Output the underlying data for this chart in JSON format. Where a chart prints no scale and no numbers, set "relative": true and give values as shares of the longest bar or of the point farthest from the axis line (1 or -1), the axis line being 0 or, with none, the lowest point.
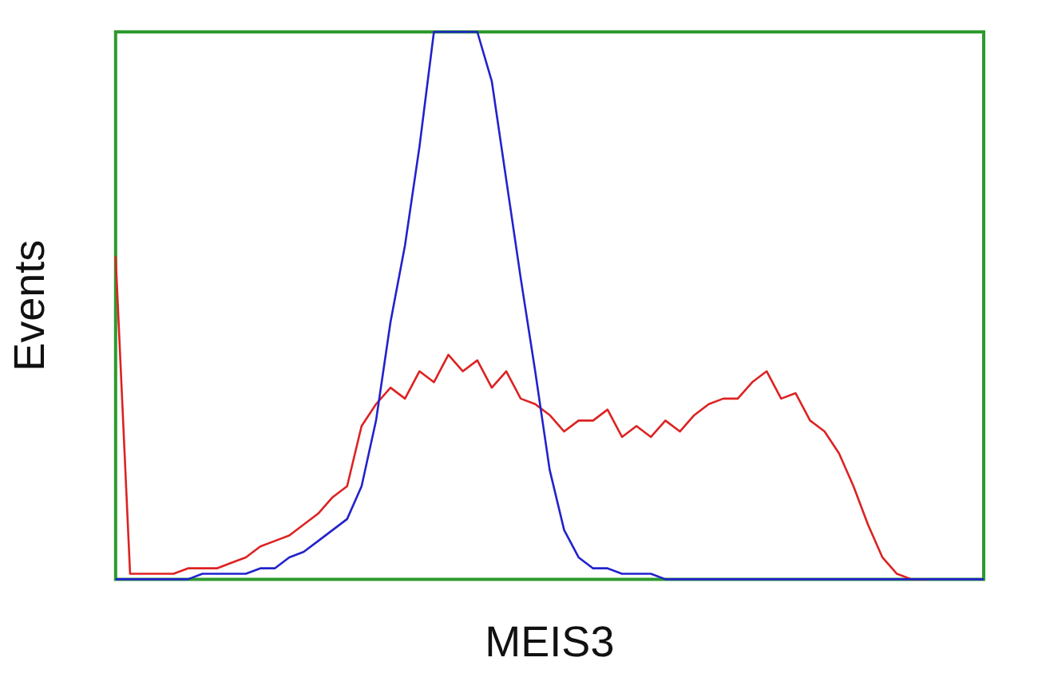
{
  "chart_data": {
    "type": "line",
    "xlabel": "MEIS3",
    "ylabel": "Events",
    "relative": true,
    "legend": false,
    "marker": "none",
    "categories": [
      null,
      null,
      null,
      null,
      null,
      null,
      null,
      null,
      null,
      null,
      null,
      null,
      null,
      null,
      null,
      null,
      null,
      null,
      null,
      null,
      null,
      null,
      null,
      null,
      null,
      null,
      null,
      null,
      null,
      null,
      null,
      null,
      null,
      null,
      null,
      null,
      null,
      null,
      null,
      null,
      null,
      null,
      null,
      null,
      null,
      null,
      null,
      null,
      null,
      null,
      null,
      null,
      null,
      null,
      null,
      null,
      null,
      null,
      null,
      null,
      null
    ],
    "series": [
      {
        "color": "#2222cc",
        "values": [
          0,
          0,
          0,
          0,
          0,
          0,
          0.01,
          0.01,
          0.01,
          0.01,
          0.02,
          0.02,
          0.04,
          0.05,
          0.07,
          0.09,
          0.11,
          0.17,
          0.29,
          0.47,
          0.61,
          0.79,
          1,
          1,
          1,
          1,
          0.91,
          0.73,
          0.55,
          0.38,
          0.2,
          0.09,
          0.04,
          0.02,
          0.02,
          0.01,
          0.01,
          0.01,
          0,
          0,
          0,
          0,
          0,
          0,
          0,
          0,
          0,
          0,
          0,
          0,
          0,
          0,
          0,
          0,
          0,
          0,
          0,
          0,
          0,
          0,
          0
        ]
      },
      {
        "color": "#dd2222",
        "values": [
          0.59,
          0.01,
          0.01,
          0.01,
          0.01,
          0.02,
          0.02,
          0.02,
          0.03,
          0.04,
          0.06,
          0.07,
          0.08,
          0.1,
          0.12,
          0.15,
          0.17,
          0.28,
          0.32,
          0.35,
          0.33,
          0.38,
          0.36,
          0.41,
          0.38,
          0.4,
          0.35,
          0.38,
          0.33,
          0.32,
          0.3,
          0.27,
          0.29,
          0.29,
          0.31,
          0.26,
          0.28,
          0.26,
          0.29,
          0.27,
          0.3,
          0.32,
          0.33,
          0.33,
          0.36,
          0.38,
          0.33,
          0.34,
          0.29,
          0.27,
          0.23,
          0.17,
          0.1,
          0.04,
          0.01,
          0,
          0,
          null,
          null,
          null,
          null
        ]
      }
    ]
  }
}
